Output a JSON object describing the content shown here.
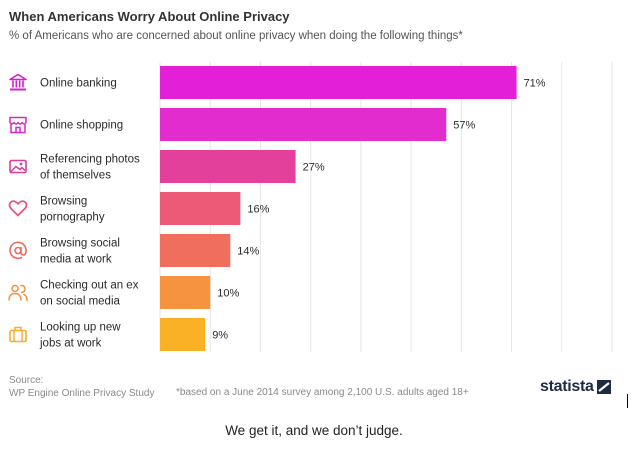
{
  "header": {
    "title": "When Americans Worry About Online Privacy",
    "subtitle": "% of Americans who are concerned about online privacy when doing the following things*"
  },
  "chart_data": {
    "type": "bar",
    "orientation": "horizontal",
    "categories": [
      [
        "Online banking"
      ],
      [
        "Online shopping"
      ],
      [
        "Referencing photos",
        "of themselves"
      ],
      [
        "Browsing",
        "pornography"
      ],
      [
        "Browsing social",
        "media at work"
      ],
      [
        "Checking out an ex",
        "on social media"
      ],
      [
        "Looking up new",
        "jobs at work"
      ]
    ],
    "values": [
      71,
      57,
      27,
      16,
      14,
      10,
      9
    ],
    "value_labels": [
      "71%",
      "57%",
      "27%",
      "16%",
      "14%",
      "10%",
      "9%"
    ],
    "icons": [
      "bank-icon",
      "storefront-icon",
      "photo-icon",
      "heart-icon",
      "at-sign-icon",
      "people-icon",
      "briefcase-icon"
    ],
    "colors": [
      "#e31fd8",
      "#e32ccd",
      "#e3409c",
      "#ec5a78",
      "#ef6e5e",
      "#f5933e",
      "#fbb126"
    ],
    "icon_colors": [
      "#d422c9",
      "#d727c1",
      "#dc3d97",
      "#e85577",
      "#ee6b5f",
      "#f59041",
      "#f8ab2f"
    ],
    "xlim": [
      0,
      90
    ],
    "grid": true,
    "legend": "none"
  },
  "footer": {
    "source_label": "Source:",
    "source_name": "WP Engine Online Privacy Study",
    "footnote": "*based on a June 2014 survey among 2,100 U.S. adults aged 18+",
    "brand": "statista"
  },
  "caption": "We get it, and we don’t judge."
}
